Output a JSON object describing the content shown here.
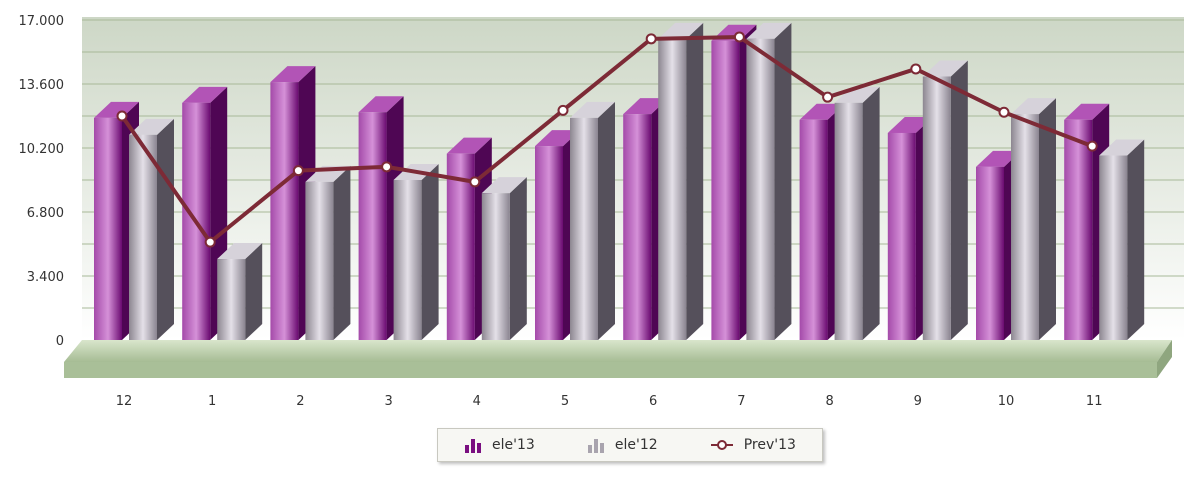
{
  "chart_data": {
    "type": "bar",
    "categories": [
      "12",
      "1",
      "2",
      "3",
      "4",
      "5",
      "6",
      "7",
      "8",
      "9",
      "10",
      "11"
    ],
    "series": [
      {
        "name": "ele'13",
        "kind": "bar",
        "color": "#7a0f80",
        "values": [
          11800,
          12600,
          13700,
          12100,
          9900,
          10300,
          12000,
          15900,
          11700,
          11000,
          9200,
          11700
        ]
      },
      {
        "name": "ele'12",
        "kind": "bar",
        "color": "#a9a4ae",
        "values": [
          10900,
          4300,
          8400,
          8500,
          7800,
          11800,
          16000,
          16000,
          12600,
          14000,
          12000,
          9800
        ]
      },
      {
        "name": "Prev'13",
        "kind": "line",
        "color": "#7d2a36",
        "values": [
          11900,
          5200,
          9000,
          9200,
          8400,
          12200,
          16000,
          16100,
          12900,
          14400,
          12100,
          10300
        ]
      }
    ],
    "yticks": [
      "0",
      "3.400",
      "6.800",
      "10.200",
      "13.600",
      "17.000"
    ],
    "ylim": [
      0,
      17000
    ],
    "grid": true,
    "legend_position": "bottom-center",
    "title": "",
    "xlabel": "",
    "ylabel": ""
  }
}
